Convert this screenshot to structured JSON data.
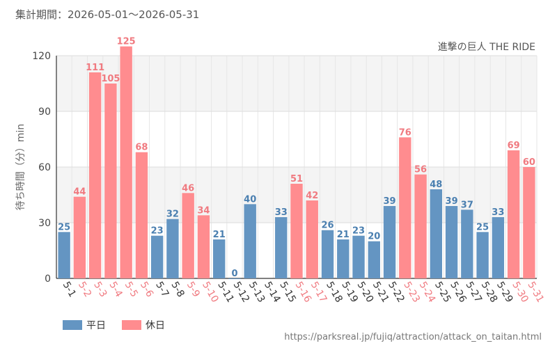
{
  "period_label": "集計期間：2026-05-01～2026-05-31",
  "source": "https://parksreal.jp/fujiq/attraction/attack_on_taitan.html",
  "colors": {
    "weekday": "#6495c2",
    "holiday": "#ff8c8f",
    "weekday_text": "#4a7fb0",
    "holiday_text": "#f07a80"
  },
  "chart_data": {
    "type": "bar",
    "title": "進撃の巨人 THE RIDE",
    "ylabel": "待ち時間（分）min",
    "xlabel": "",
    "ylim": [
      0,
      120
    ],
    "yticks": [
      0,
      30,
      60,
      90,
      120
    ],
    "grid": true,
    "legend_position": "bottom-left",
    "legend": [
      {
        "key": "weekday",
        "label": "平日"
      },
      {
        "key": "holiday",
        "label": "休日"
      }
    ],
    "categories": [
      "5-1",
      "5-2",
      "5-3",
      "5-4",
      "5-5",
      "5-6",
      "5-7",
      "5-8",
      "5-9",
      "5-10",
      "5-11",
      "5-12",
      "5-13",
      "5-14",
      "5-15",
      "5-16",
      "5-17",
      "5-18",
      "5-19",
      "5-20",
      "5-21",
      "5-22",
      "5-23",
      "5-24",
      "5-25",
      "5-26",
      "5-27",
      "5-28",
      "5-29",
      "5-30",
      "5-31"
    ],
    "values": [
      25,
      44,
      111,
      105,
      125,
      68,
      23,
      32,
      46,
      34,
      21,
      0,
      40,
      null,
      33,
      51,
      42,
      26,
      21,
      23,
      20,
      39,
      76,
      56,
      48,
      39,
      37,
      25,
      33,
      69,
      60
    ],
    "day_type": [
      "weekday",
      "holiday",
      "holiday",
      "holiday",
      "holiday",
      "holiday",
      "weekday",
      "weekday",
      "holiday",
      "holiday",
      "weekday",
      "weekday",
      "weekday",
      "weekday",
      "weekday",
      "holiday",
      "holiday",
      "weekday",
      "weekday",
      "weekday",
      "weekday",
      "weekday",
      "holiday",
      "holiday",
      "weekday",
      "weekday",
      "weekday",
      "weekday",
      "weekday",
      "holiday",
      "holiday"
    ]
  }
}
